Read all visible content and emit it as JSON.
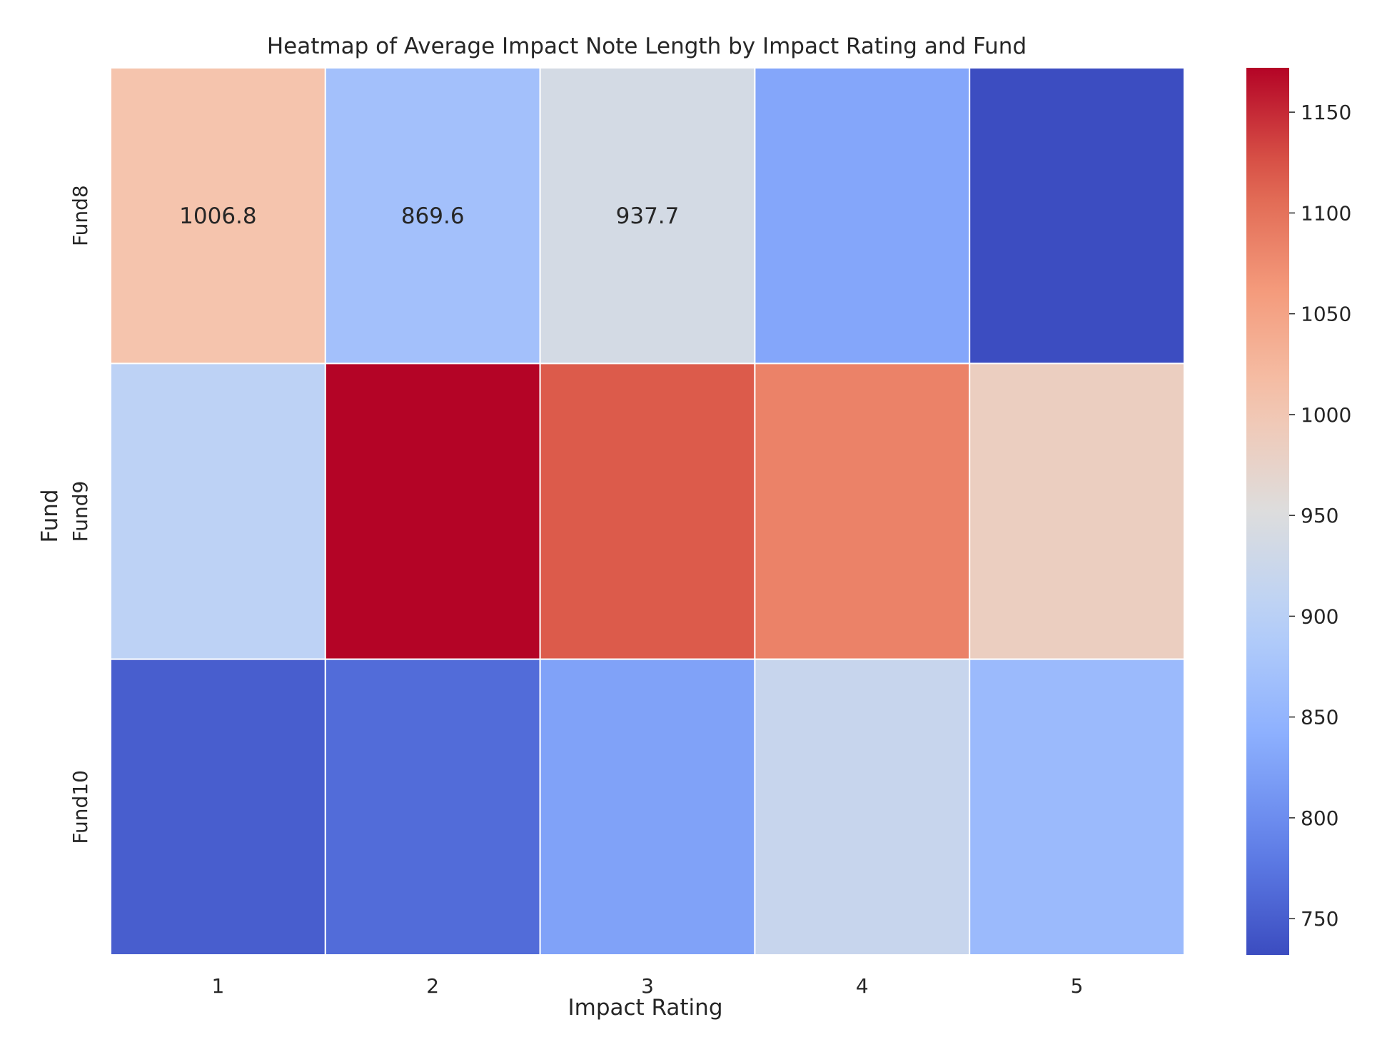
{
  "chart_data": {
    "type": "heatmap",
    "title": "Heatmap of Average Impact Note Length by Impact Rating and Fund",
    "xlabel": "Impact Rating",
    "ylabel": "Fund",
    "x_categories": [
      "1",
      "2",
      "3",
      "4",
      "5"
    ],
    "y_categories": [
      "Fund8",
      "Fund9",
      "Fund10"
    ],
    "values": [
      [
        1006.8,
        869.6,
        937.7,
        830,
        733
      ],
      [
        905,
        1172,
        1120,
        1085,
        985
      ],
      [
        750,
        765,
        825,
        920,
        860
      ]
    ],
    "annotations": [
      {
        "row": 0,
        "col": 0,
        "text": "1006.8"
      },
      {
        "row": 0,
        "col": 1,
        "text": "869.6"
      },
      {
        "row": 0,
        "col": 2,
        "text": "937.7"
      }
    ],
    "colorbar": {
      "colormap": "coolwarm",
      "vmin": 732,
      "vmax": 1172,
      "ticks": [
        750,
        800,
        850,
        900,
        950,
        1000,
        1050,
        1100,
        1150
      ]
    },
    "cell_border_color": "#ffffff",
    "legend": "right"
  }
}
